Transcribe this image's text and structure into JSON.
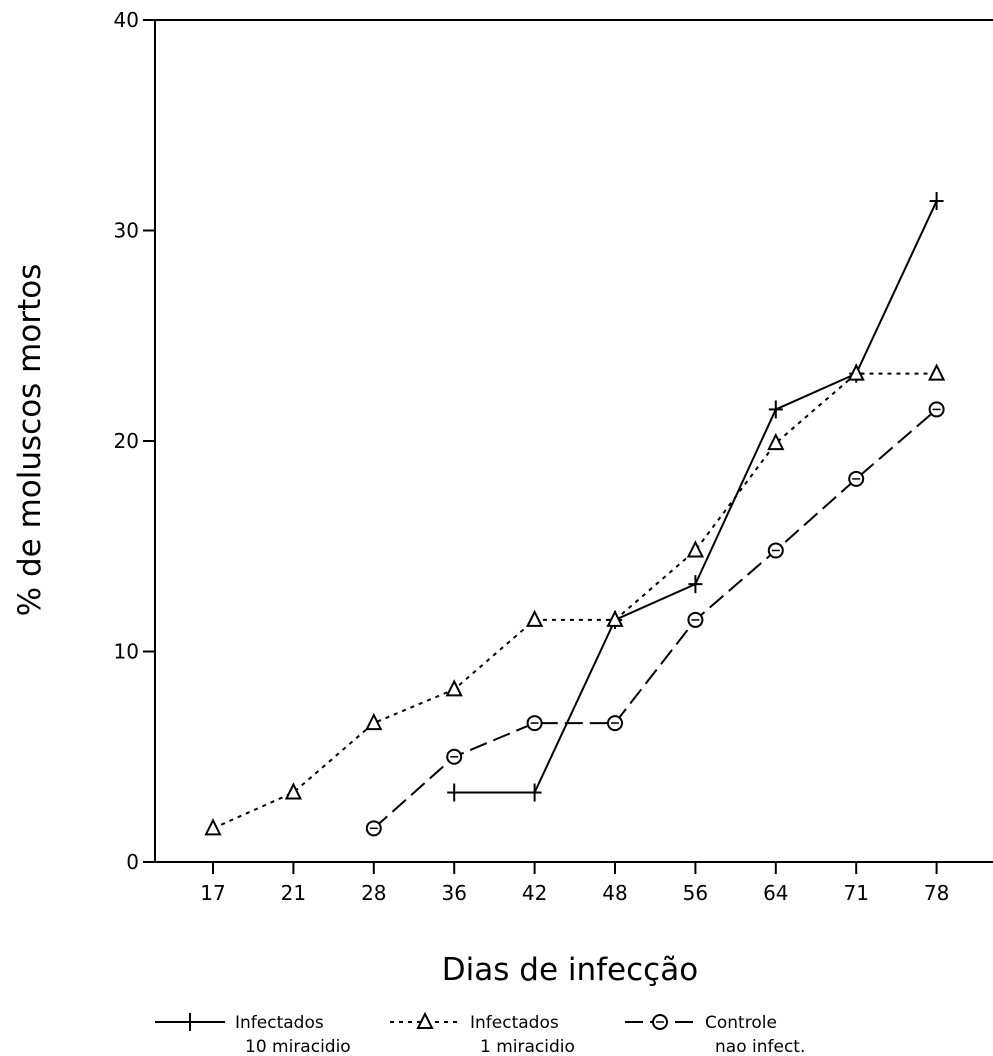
{
  "chart_data": {
    "type": "line",
    "title": "",
    "xlabel": "Dias de infecção",
    "ylabel": "% de moluscos mortos",
    "categories": [
      "17",
      "21",
      "28",
      "36",
      "42",
      "48",
      "56",
      "64",
      "71",
      "78"
    ],
    "ylim": [
      0,
      40
    ],
    "yticks": [
      "0",
      "10",
      "20",
      "30",
      "40"
    ],
    "grid": false,
    "legend_position": "bottom",
    "series": [
      {
        "name": "Infectados 10 miracídio",
        "legend_line1": "Infectados",
        "legend_line2": "10 miracidio",
        "marker": "plus",
        "dash": "solid",
        "values": [
          null,
          null,
          null,
          3.3,
          3.3,
          11.5,
          13.2,
          21.5,
          23.2,
          31.4
        ]
      },
      {
        "name": "Infectados 1 miracídio",
        "legend_line1": "Infectados",
        "legend_line2": "1 miracidio",
        "marker": "triangle",
        "dash": "dotted",
        "values": [
          1.6,
          3.3,
          6.6,
          8.2,
          11.5,
          11.5,
          14.8,
          19.9,
          23.2,
          23.2
        ]
      },
      {
        "name": "Controle não infect.",
        "legend_line1": "Controle",
        "legend_line2": "nao infect.",
        "marker": "circle",
        "dash": "dashed",
        "values": [
          null,
          null,
          1.6,
          5.0,
          6.6,
          6.6,
          11.5,
          14.8,
          18.2,
          21.5
        ]
      }
    ]
  }
}
